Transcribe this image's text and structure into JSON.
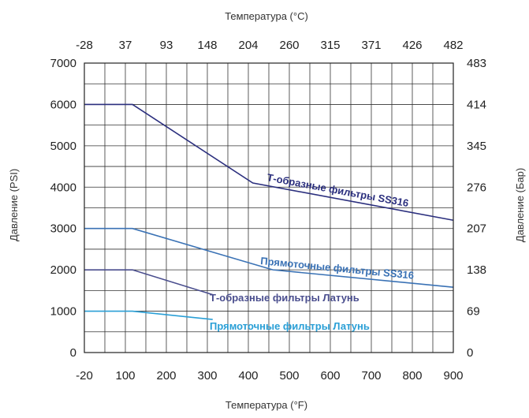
{
  "chart_data": {
    "type": "line",
    "title": "",
    "x_axis": {
      "label": "Температура (°F)",
      "ticks": [
        "-20",
        "100",
        "200",
        "300",
        "400",
        "500",
        "600",
        "700",
        "800",
        "900"
      ],
      "xlim": [
        -20,
        900
      ]
    },
    "x_axis_top": {
      "label": "Температура (°C)",
      "ticks": [
        "-28",
        "37",
        "93",
        "148",
        "204",
        "260",
        "315",
        "371",
        "426",
        "482"
      ]
    },
    "y_axis": {
      "label": "Давление (PSI)",
      "ticks": [
        "0",
        "1000",
        "2000",
        "3000",
        "4000",
        "5000",
        "6000",
        "7000"
      ],
      "ylim": [
        0,
        7000
      ]
    },
    "y_axis_right": {
      "label": "Давление (Бар)",
      "ticks": [
        "0",
        "69",
        "138",
        "207",
        "276",
        "345",
        "414",
        "483"
      ]
    },
    "grid": {
      "vertical_divisions": 18,
      "horizontal_divisions": 14
    },
    "series": [
      {
        "name": "Т-образные фильтры SS316",
        "color": "#2b2f7e",
        "x": [
          -20,
          100,
          400,
          900
        ],
        "y": [
          6000,
          6000,
          4100,
          3200
        ]
      },
      {
        "name": "Прямоточные фильтры SS316",
        "color": "#3a72b5",
        "x": [
          -20,
          100,
          450,
          900
        ],
        "y": [
          3000,
          3000,
          2000,
          1580
        ]
      },
      {
        "name": "Т-образные фильтры Латунь",
        "color": "#4a4e8e",
        "x": [
          -20,
          100,
          300
        ],
        "y": [
          2000,
          2000,
          1400
        ]
      },
      {
        "name": "Прямоточные фильтры Латунь",
        "color": "#2a9fd6",
        "x": [
          -20,
          100,
          300
        ],
        "y": [
          1000,
          1000,
          800
        ]
      }
    ]
  }
}
